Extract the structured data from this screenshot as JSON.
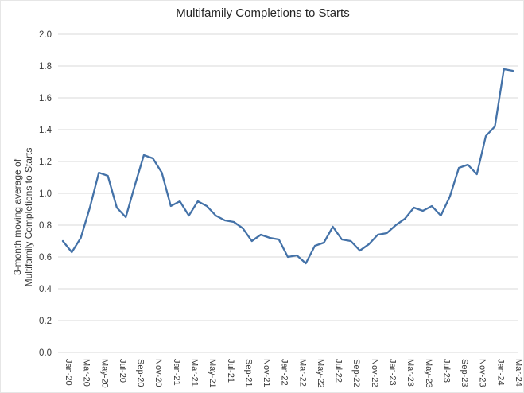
{
  "chart_data": {
    "type": "line",
    "title": "Multifamily Completions to Starts",
    "xlabel": "",
    "ylabel": "3-month moving average of Multifamily Completions to Starts",
    "ylabel_lines": [
      "3-month moving average of",
      "Multifamily Completions to Starts"
    ],
    "categories": [
      "Jan-20",
      "Feb-20",
      "Mar-20",
      "Apr-20",
      "May-20",
      "Jun-20",
      "Jul-20",
      "Aug-20",
      "Sep-20",
      "Oct-20",
      "Nov-20",
      "Dec-20",
      "Jan-21",
      "Feb-21",
      "Mar-21",
      "Apr-21",
      "May-21",
      "Jun-21",
      "Jul-21",
      "Aug-21",
      "Sep-21",
      "Oct-21",
      "Nov-21",
      "Dec-21",
      "Jan-22",
      "Feb-22",
      "Mar-22",
      "Apr-22",
      "May-22",
      "Jun-22",
      "Jul-22",
      "Aug-22",
      "Sep-22",
      "Oct-22",
      "Nov-22",
      "Dec-22",
      "Jan-23",
      "Feb-23",
      "Mar-23",
      "Apr-23",
      "May-23",
      "Jun-23",
      "Jul-23",
      "Aug-23",
      "Sep-23",
      "Oct-23",
      "Nov-23",
      "Dec-23",
      "Jan-24",
      "Feb-24",
      "Mar-24"
    ],
    "values": [
      0.7,
      0.63,
      0.72,
      0.91,
      1.13,
      1.11,
      0.91,
      0.85,
      1.05,
      1.24,
      1.22,
      1.13,
      0.92,
      0.95,
      0.86,
      0.95,
      0.92,
      0.86,
      0.83,
      0.82,
      0.78,
      0.7,
      0.74,
      0.72,
      0.71,
      0.6,
      0.61,
      0.56,
      0.67,
      0.69,
      0.79,
      0.71,
      0.7,
      0.64,
      0.68,
      0.74,
      0.75,
      0.8,
      0.84,
      0.91,
      0.89,
      0.92,
      0.86,
      0.98,
      1.16,
      1.18,
      1.12,
      1.36,
      1.42,
      1.78,
      1.77
    ],
    "ylim": [
      0.0,
      2.0
    ],
    "ytick_step": 0.2,
    "ytick_decimals": 1,
    "xtick_every": 2,
    "grid": true,
    "legend": "none",
    "line_color": "#4472A8",
    "grid_color": "#D9D9D9",
    "text_color": "#3a3a3a"
  }
}
